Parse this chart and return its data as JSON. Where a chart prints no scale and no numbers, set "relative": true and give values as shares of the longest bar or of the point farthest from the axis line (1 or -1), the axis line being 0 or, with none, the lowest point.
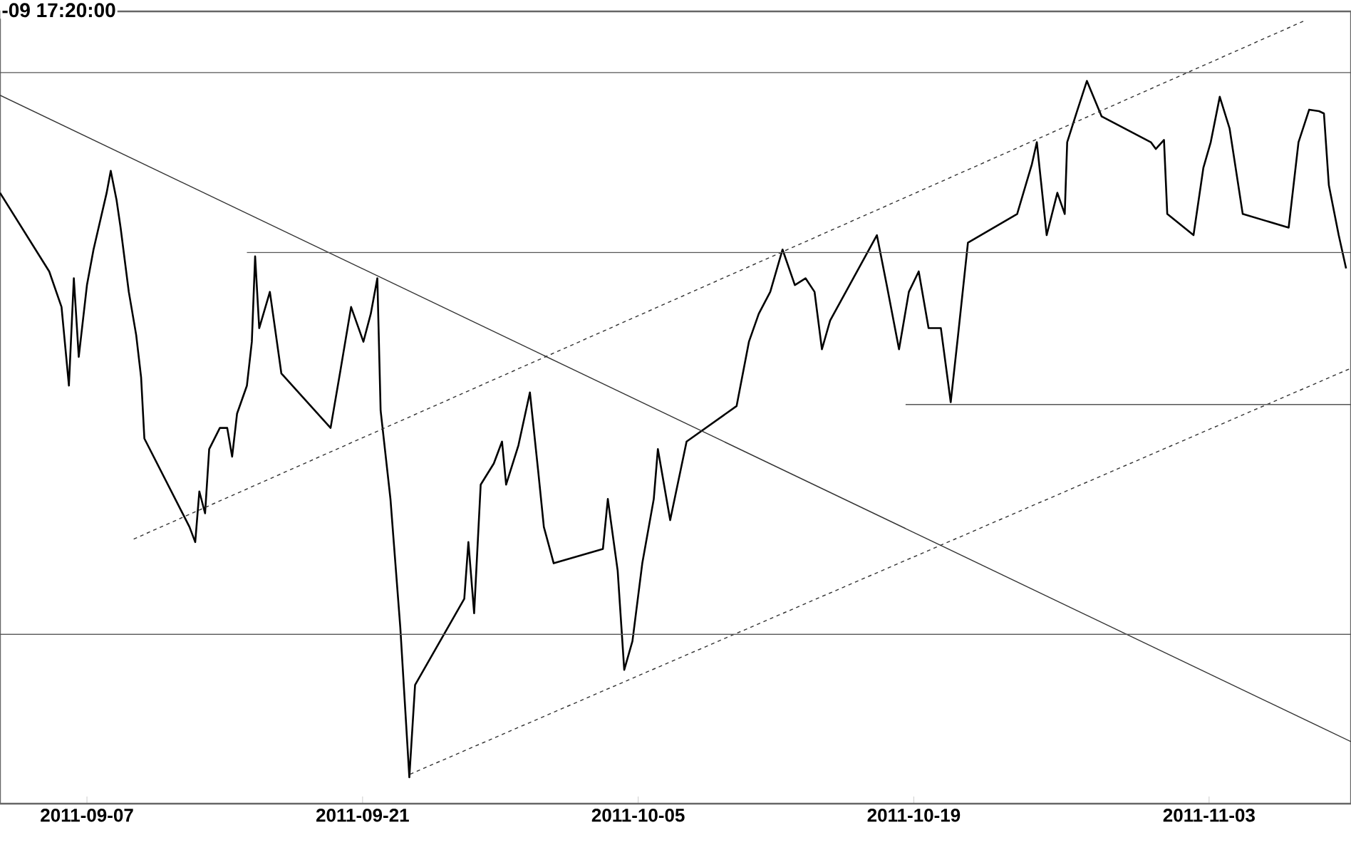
{
  "chart_data": {
    "type": "line",
    "title": "-09 17:20:00",
    "relative": true,
    "xlim": [
      "2011-09-02T14:00",
      "2011-11-10T05:00"
    ],
    "xticks": [
      "2011-09-07",
      "2011-09-21",
      "2011-10-05",
      "2011-10-19",
      "2011-11-03"
    ],
    "series": [
      {
        "color": "#000000",
        "line_style": "solid",
        "x": [
          "2011-09-02T14:00",
          "2011-09-05T02:00",
          "2011-09-05T17:00",
          "2011-09-06T02:00",
          "2011-09-06T08:00",
          "2011-09-06T14:00",
          "2011-09-07T00:00",
          "2011-09-07T08:00",
          "2011-09-08T00:00",
          "2011-09-08T05:00",
          "2011-09-08T12:00",
          "2011-09-08T17:00",
          "2011-09-09T03:00",
          "2011-09-09T12:00",
          "2011-09-09T18:00",
          "2011-09-09T22:00",
          "2011-09-12T05:00",
          "2011-09-12T12:00",
          "2011-09-12T17:00",
          "2011-09-13T00:00",
          "2011-09-13T05:00",
          "2011-09-13T18:00",
          "2011-09-14T03:00",
          "2011-09-14T09:00",
          "2011-09-14T15:00",
          "2011-09-15T03:00",
          "2011-09-15T09:00",
          "2011-09-15T13:00",
          "2011-09-15T18:00",
          "2011-09-16T07:00",
          "2011-09-16T21:00",
          "2011-09-19T09:00",
          "2011-09-19T21:00",
          "2011-09-20T10:00",
          "2011-09-21T01:00",
          "2011-09-21T10:00",
          "2011-09-21T18:00",
          "2011-09-21T22:00",
          "2011-09-22T10:00",
          "2011-09-22T22:00",
          "2011-09-23T09:00",
          "2011-09-23T16:00",
          "2011-09-26T04:00",
          "2011-09-26T09:00",
          "2011-09-26T16:00",
          "2011-09-27T00:00",
          "2011-09-27T16:00",
          "2011-09-28T02:00",
          "2011-09-28T07:00",
          "2011-09-28T22:00",
          "2011-09-29T12:00",
          "2011-09-29T22:00",
          "2011-09-30T05:00",
          "2011-09-30T17:00",
          "2011-10-03T05:00",
          "2011-10-03T11:00",
          "2011-10-03T23:00",
          "2011-10-04T07:00",
          "2011-10-04T17:00",
          "2011-10-05T05:00",
          "2011-10-05T19:00",
          "2011-10-06T00:00",
          "2011-10-06T15:00",
          "2011-10-07T11:00",
          "2011-10-10T00:00",
          "2011-10-10T15:00",
          "2011-10-11T03:00",
          "2011-10-11T17:00",
          "2011-10-12T08:00",
          "2011-10-12T23:00",
          "2011-10-13T12:00",
          "2011-10-13T23:00",
          "2011-10-14T08:00",
          "2011-10-14T18:00",
          "2011-10-17T03:00",
          "2011-10-17T15:00",
          "2011-10-18T06:00",
          "2011-10-18T18:00",
          "2011-10-19T06:00",
          "2011-10-19T18:00",
          "2011-10-20T09:00",
          "2011-10-20T21:00",
          "2011-10-21T06:00",
          "2011-10-21T18:00",
          "2011-10-24T06:00",
          "2011-10-25T00:00",
          "2011-10-25T06:00",
          "2011-10-25T18:00",
          "2011-10-26T07:00",
          "2011-10-26T16:00",
          "2011-10-26T19:00",
          "2011-10-27T07:00",
          "2011-10-27T19:00",
          "2011-10-28T13:00",
          "2011-10-31T01:00",
          "2011-10-31T07:00",
          "2011-10-31T17:00",
          "2011-10-31T21:00",
          "2011-11-02T05:00",
          "2011-11-02T17:00",
          "2011-11-03T02:00",
          "2011-11-03T13:00",
          "2011-11-04T01:00",
          "2011-11-04T17:00",
          "2011-11-07T01:00",
          "2011-11-07T13:00",
          "2011-11-08T02:00",
          "2011-11-08T14:00",
          "2011-11-08T20:00",
          "2011-11-09T02:00",
          "2011-11-09T14:00",
          "2011-11-09T23:00"
        ],
        "values": [
          0.773,
          0.669,
          0.622,
          0.518,
          0.66,
          0.556,
          0.651,
          0.698,
          0.773,
          0.802,
          0.764,
          0.727,
          0.642,
          0.585,
          0.529,
          0.448,
          0.331,
          0.311,
          0.378,
          0.349,
          0.434,
          0.462,
          0.462,
          0.424,
          0.481,
          0.518,
          0.576,
          0.689,
          0.594,
          0.642,
          0.534,
          0.462,
          0.538,
          0.622,
          0.576,
          0.613,
          0.66,
          0.485,
          0.368,
          0.198,
          0,
          0.122,
          0.236,
          0.311,
          0.217,
          0.387,
          0.415,
          0.444,
          0.387,
          0.439,
          0.509,
          0.406,
          0.331,
          0.283,
          0.302,
          0.368,
          0.273,
          0.142,
          0.18,
          0.283,
          0.368,
          0.434,
          0.34,
          0.444,
          0.491,
          0.576,
          0.613,
          0.642,
          0.698,
          0.651,
          0.66,
          0.642,
          0.566,
          0.604,
          0.717,
          0.651,
          0.566,
          0.642,
          0.669,
          0.594,
          0.594,
          0.496,
          0.585,
          0.707,
          0.745,
          0.811,
          0.84,
          0.717,
          0.773,
          0.745,
          0.84,
          0.881,
          0.921,
          0.874,
          0.84,
          0.831,
          0.843,
          0.745,
          0.717,
          0.806,
          0.84,
          0.9,
          0.858,
          0.745,
          0.727,
          0.84,
          0.883,
          0.881,
          0.878,
          0.783,
          0.717,
          0.673
        ]
      },
      {
        "color": "#333333",
        "line_style": "solid",
        "x": [
          "2011-09-02T14:00",
          "2011-11-10T05:00"
        ],
        "values": [
          0.902,
          0.047
        ]
      },
      {
        "color": "#333333",
        "line_style": "dashed",
        "x": [
          "2011-09-09T09:00",
          "2011-11-07T19:00"
        ],
        "values": [
          0.315,
          1
        ]
      },
      {
        "color": "#333333",
        "line_style": "dashed",
        "x": [
          "2011-09-23T10:00",
          "2011-11-10T05:00"
        ],
        "values": [
          0.004,
          0.541
        ]
      },
      {
        "color": "#555555",
        "line_style": "solid",
        "x": [
          "2011-09-02T14:00",
          "2011-11-10T05:00"
        ],
        "values": [
          0.932,
          0.932
        ]
      },
      {
        "color": "#555555",
        "line_style": "solid",
        "x": [
          "2011-09-15T03:00",
          "2011-11-10T05:00"
        ],
        "values": [
          0.694,
          0.694
        ]
      },
      {
        "color": "#555555",
        "line_style": "solid",
        "x": [
          "2011-10-18T14:00",
          "2011-11-10T05:00"
        ],
        "values": [
          0.493,
          0.493
        ]
      },
      {
        "color": "#555555",
        "line_style": "solid",
        "x": [
          "2011-09-02T14:00",
          "2011-11-10T05:00"
        ],
        "values": [
          0.189,
          0.189
        ]
      }
    ]
  }
}
